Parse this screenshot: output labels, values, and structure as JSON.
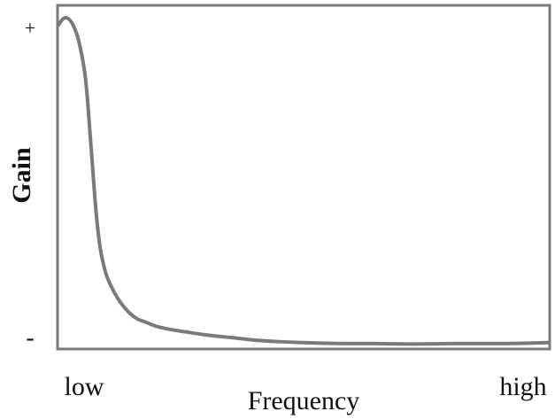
{
  "chart_data": {
    "type": "line",
    "xlabel": "Frequency",
    "ylabel": "Gain",
    "x_tick_labels": [
      "low",
      "high"
    ],
    "y_tick_labels": [
      "-",
      "+"
    ],
    "xlim": [
      0,
      100
    ],
    "ylim": [
      0,
      100
    ],
    "grid": false,
    "legend": "none",
    "line_color": "#7a7a7a",
    "frame_color": "#7a7a7a",
    "series": [
      {
        "x": [
          0,
          1,
          2,
          3,
          4,
          5,
          5.5,
          6,
          6.5,
          7,
          7.5,
          8,
          8.5,
          9,
          10,
          12,
          14,
          16,
          18,
          20,
          23,
          26,
          30,
          35,
          40,
          45,
          50,
          55,
          60,
          65,
          70,
          75,
          80,
          85,
          90,
          95,
          100
        ],
        "y": [
          98,
          100,
          100,
          98,
          94,
          87,
          82,
          74,
          64,
          54,
          44,
          36,
          30,
          26,
          20.5,
          14.5,
          10.5,
          8,
          6.8,
          5.6,
          4.6,
          3.9,
          3.0,
          2.2,
          1.4,
          0.9,
          0.6,
          0.4,
          0.3,
          0.3,
          0.2,
          0.2,
          0.3,
          0.3,
          0.3,
          0.4,
          0.6
        ]
      }
    ]
  }
}
